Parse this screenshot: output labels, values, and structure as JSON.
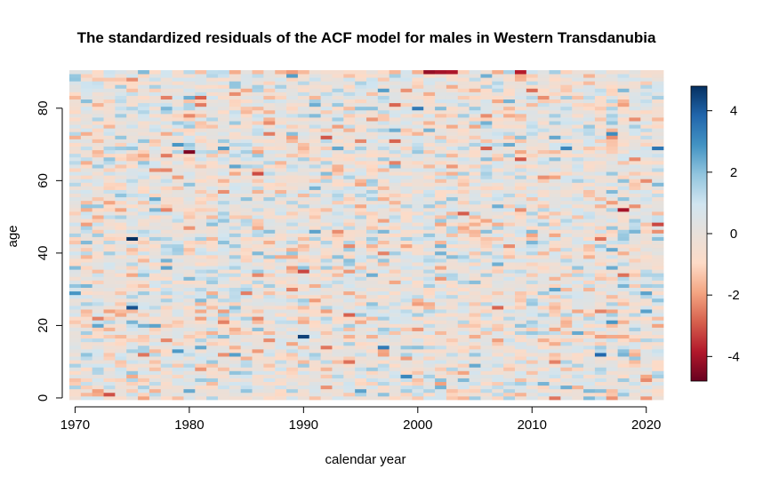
{
  "chart_data": {
    "type": "heatmap",
    "title": "The standardized residuals of the ACF model for males in Western Transdanubia",
    "xlabel": "calendar year",
    "ylabel": "age",
    "x_range": [
      1970,
      2021
    ],
    "y_range": [
      0,
      90
    ],
    "x_ticks": [
      1970,
      1980,
      1990,
      2000,
      2010,
      2020
    ],
    "y_ticks": [
      0,
      20,
      40,
      60,
      80
    ],
    "colorbar": {
      "min": -4.8,
      "max": 4.8,
      "ticks": [
        4,
        2,
        0,
        -2,
        -4
      ],
      "colors": [
        "#67001F",
        "#B2182B",
        "#D6604D",
        "#F4A582",
        "#FDDBC7",
        "#E8E0DA",
        "#D1E5F0",
        "#92C5DE",
        "#4393C3",
        "#2166AC",
        "#053061"
      ]
    },
    "notable_cells": [
      {
        "year": 2001,
        "age": 90,
        "value": -4.2
      },
      {
        "year": 2002,
        "age": 90,
        "value": -4.0
      },
      {
        "year": 2003,
        "age": 90,
        "value": -3.9
      },
      {
        "year": 2009,
        "age": 90,
        "value": -3.8
      },
      {
        "year": 1998,
        "age": 81,
        "value": -2.8
      },
      {
        "year": 1992,
        "age": 72,
        "value": -3.0
      },
      {
        "year": 1980,
        "age": 68,
        "value": -4.5
      },
      {
        "year": 2018,
        "age": 52,
        "value": -4.0
      },
      {
        "year": 2021,
        "age": 48,
        "value": -3.2
      },
      {
        "year": 1975,
        "age": 44,
        "value": 4.8
      },
      {
        "year": 1975,
        "age": 25,
        "value": 4.2
      },
      {
        "year": 1990,
        "age": 17,
        "value": 4.5
      },
      {
        "year": 2016,
        "age": 12,
        "value": 3.8
      },
      {
        "year": 2021,
        "age": 69,
        "value": 3.5
      }
    ]
  }
}
